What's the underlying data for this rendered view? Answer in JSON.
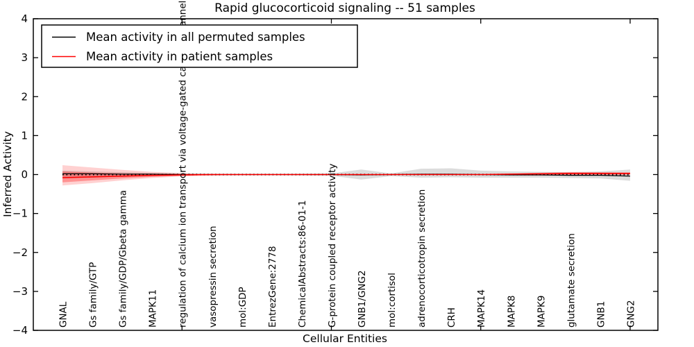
{
  "chart_data": {
    "type": "line",
    "title": "Rapid glucocorticoid signaling -- 51 samples",
    "xlabel": "Cellular Entities",
    "ylabel": "Inferred Activity",
    "ylim": [
      -4,
      4
    ],
    "xlim": [
      0,
      20.93
    ],
    "yticks": [
      4,
      3,
      2,
      1,
      0,
      -1,
      -2,
      -3,
      -4
    ],
    "ytick_labels": [
      "4",
      "3",
      "2",
      "1",
      "0",
      "−1",
      "−2",
      "−3",
      "−4"
    ],
    "xticks": [
      0,
      5,
      10,
      15,
      20
    ],
    "grid": false,
    "legend_position": "upper left",
    "entities": [
      "GNAL",
      "Gs family/GTP",
      "Gs family/GDP/Gbeta gamma",
      "MAPK11",
      "regulation of calcium ion transport via voltage-gated calcium channel",
      "vasopressin secretion",
      "mol:GDP",
      "EntrezGene:2778",
      "ChemicalAbstracts:86-01-1",
      "G-protein coupled receptor activity",
      "GNB1/GNG2",
      "mol:cortisol",
      "adrenocorticotropin secretion",
      "CRH",
      "MAPK14",
      "MAPK8",
      "MAPK9",
      "glutamate secretion",
      "GNB1",
      "GNG2"
    ],
    "series": [
      {
        "name": "Mean activity in all permuted samples",
        "color": "#000000",
        "values": [
          0.02,
          0.02,
          0.01,
          0.01,
          0.0,
          0.0,
          0.0,
          0.0,
          0.0,
          0.0,
          -0.01,
          0.0,
          0.01,
          0.01,
          0.0,
          -0.01,
          -0.01,
          -0.02,
          -0.02,
          -0.04
        ]
      },
      {
        "name": "Mean activity in patient samples",
        "color": "#ff0000",
        "values": [
          -0.08,
          -0.06,
          -0.04,
          -0.02,
          -0.01,
          0.0,
          0.0,
          0.0,
          0.0,
          0.0,
          0.0,
          0.0,
          0.0,
          0.0,
          0.0,
          0.01,
          0.02,
          0.03,
          0.03,
          0.03
        ]
      }
    ],
    "bands": [
      {
        "name": "permuted-std-band",
        "color": "#9a9a9a",
        "opacity": 0.35,
        "hi": [
          0.1,
          0.08,
          0.06,
          0.04,
          0.02,
          0.015,
          0.015,
          0.015,
          0.02,
          0.03,
          0.13,
          0.03,
          0.15,
          0.16,
          0.1,
          0.08,
          0.07,
          0.06,
          0.08,
          0.13
        ],
        "lo": [
          -0.1,
          -0.08,
          -0.06,
          -0.04,
          -0.02,
          -0.015,
          -0.015,
          -0.015,
          -0.02,
          -0.03,
          -0.13,
          -0.04,
          -0.08,
          -0.07,
          -0.08,
          -0.08,
          -0.08,
          -0.09,
          -0.1,
          -0.16
        ]
      },
      {
        "name": "patient-std-outer-band",
        "color": "#ff0000",
        "opacity": 0.18,
        "hi": [
          0.24,
          0.18,
          0.12,
          0.07,
          0.04,
          0.02,
          0.01,
          0.01,
          0.01,
          0.01,
          0.01,
          0.01,
          0.01,
          0.01,
          0.01,
          0.02,
          0.05,
          0.07,
          0.06,
          0.06
        ],
        "lo": [
          -0.28,
          -0.22,
          -0.15,
          -0.09,
          -0.05,
          -0.03,
          -0.01,
          -0.01,
          -0.01,
          -0.01,
          -0.01,
          -0.01,
          -0.01,
          -0.01,
          -0.01,
          -0.02,
          -0.03,
          -0.02,
          -0.02,
          -0.01
        ]
      },
      {
        "name": "patient-std-inner-band",
        "color": "#ff0000",
        "opacity": 0.3,
        "hi": [
          0.08,
          0.05,
          0.03,
          0.02,
          0.01,
          0.005,
          0.005,
          0.005,
          0.005,
          0.005,
          0.005,
          0.005,
          0.005,
          0.005,
          0.005,
          0.01,
          0.03,
          0.05,
          0.05,
          0.04
        ],
        "lo": [
          -0.2,
          -0.15,
          -0.1,
          -0.06,
          -0.03,
          -0.01,
          -0.005,
          -0.005,
          -0.005,
          -0.005,
          -0.005,
          -0.005,
          -0.005,
          -0.005,
          -0.005,
          -0.01,
          -0.01,
          0.0,
          0.0,
          0.0
        ]
      }
    ],
    "zero_line": {
      "value": 0,
      "style": "dotted",
      "color": "#000000"
    },
    "legend": {
      "items": [
        {
          "label": "Mean activity in all permuted samples",
          "color": "#000000"
        },
        {
          "label": "Mean activity in patient samples",
          "color": "#ff0000"
        }
      ]
    }
  }
}
